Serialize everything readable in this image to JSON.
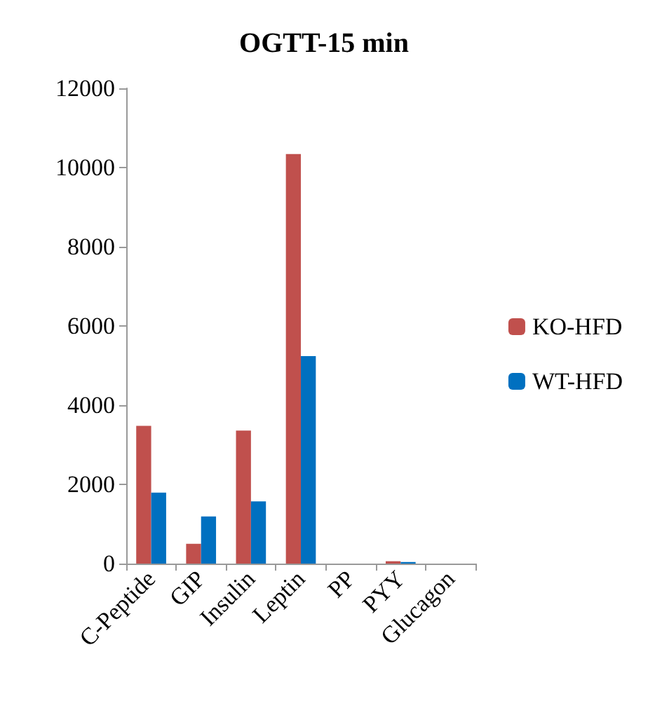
{
  "chart_data": {
    "type": "bar",
    "title": "OGTT-15 min",
    "categories": [
      "C-Peptide",
      "GIP",
      "Insulin",
      "Leptin",
      "PP",
      "PYY",
      "Glucagon"
    ],
    "series": [
      {
        "name": "KO-HFD",
        "color": "#c0504d",
        "values": [
          3480,
          500,
          3360,
          10340,
          0,
          60,
          0
        ]
      },
      {
        "name": "WT-HFD",
        "color": "#0070c0",
        "values": [
          1790,
          1190,
          1570,
          5240,
          0,
          40,
          0
        ]
      }
    ],
    "ylim": [
      0,
      12000
    ],
    "yticks": [
      0,
      2000,
      4000,
      6000,
      8000,
      10000,
      12000
    ],
    "grid": false,
    "legend": "right"
  }
}
